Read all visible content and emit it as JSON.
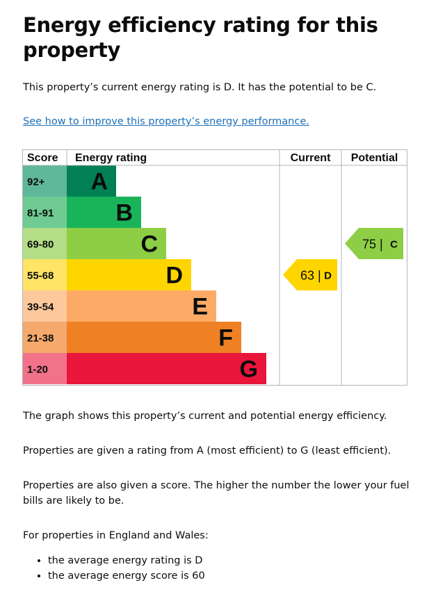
{
  "heading": "Energy efficiency rating for this property",
  "summary": "This property’s current energy rating is D. It has the potential to be C.",
  "improve_link": "See how to improve this property’s energy performance.",
  "chart_data": {
    "type": "bar",
    "headers": {
      "score": "Score",
      "rating": "Energy rating",
      "current": "Current",
      "potential": "Potential"
    },
    "bands": [
      {
        "score": "92+",
        "letter": "A",
        "color": "#008054",
        "score_color": "#5fb89a"
      },
      {
        "score": "81-91",
        "letter": "B",
        "color": "#19b459",
        "score_color": "#6fcb92"
      },
      {
        "score": "69-80",
        "letter": "C",
        "color": "#8dce46",
        "score_color": "#b3dd86"
      },
      {
        "score": "55-68",
        "letter": "D",
        "color": "#ffd500",
        "score_color": "#ffe466"
      },
      {
        "score": "39-54",
        "letter": "E",
        "color": "#fcaa65",
        "score_color": "#fdc89c"
      },
      {
        "score": "21-38",
        "letter": "F",
        "color": "#ef8023",
        "score_color": "#f5a96c"
      },
      {
        "score": "1-20",
        "letter": "G",
        "color": "#e9153b",
        "score_color": "#f17289"
      }
    ],
    "current": {
      "value": 63,
      "letter": "D",
      "label": "63 |",
      "color": "#ffd500"
    },
    "potential": {
      "value": 75,
      "letter": "C",
      "label": "75 |",
      "color": "#8dce46"
    }
  },
  "graph_note": "The graph shows this property’s current and potential energy efficiency.",
  "rating_note": "Properties are given a rating from A (most efficient) to G (least efficient).",
  "score_note": "Properties are also given a score. The higher the number the lower your fuel bills are likely to be.",
  "region_note": "For properties in England and Wales:",
  "averages": [
    "the average energy rating is D",
    "the average energy score is 60"
  ]
}
